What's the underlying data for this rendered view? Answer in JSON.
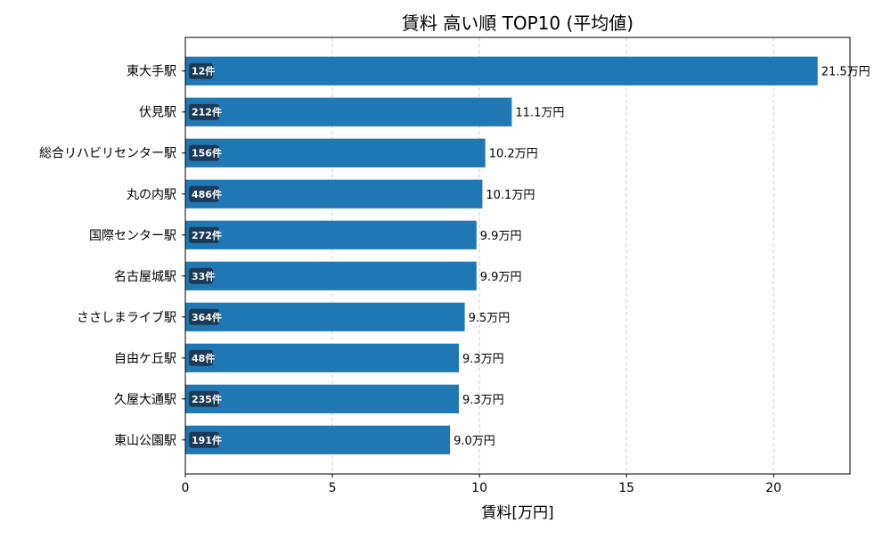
{
  "chart_data": {
    "type": "bar",
    "orientation": "horizontal",
    "title": "賃料 高い順 TOP10 (平均値)",
    "xlabel": "賃料[万円]",
    "ylabel": "",
    "xlim": [
      0,
      22.6
    ],
    "xticks": [
      0,
      5,
      10,
      15,
      20
    ],
    "grid": "x-dashed",
    "categories": [
      "東大手駅",
      "伏見駅",
      "総合リハビリセンター駅",
      "丸の内駅",
      "国際センター駅",
      "名古屋城駅",
      "ささしまライブ駅",
      "自由ケ丘駅",
      "久屋大通駅",
      "東山公園駅"
    ],
    "values": [
      21.5,
      11.1,
      10.2,
      10.1,
      9.9,
      9.9,
      9.5,
      9.3,
      9.3,
      9.0
    ],
    "value_labels": [
      "21.5万円",
      "11.1万円",
      "10.2万円",
      "10.1万円",
      "9.9万円",
      "9.9万円",
      "9.5万円",
      "9.3万円",
      "9.3万円",
      "9.0万円"
    ],
    "count_labels": [
      "12件",
      "212件",
      "156件",
      "486件",
      "272件",
      "33件",
      "364件",
      "48件",
      "235件",
      "191件"
    ],
    "colors": {
      "bar": "#1f77b4",
      "badge": "#1b3a57",
      "grid": "#cccccc"
    }
  }
}
